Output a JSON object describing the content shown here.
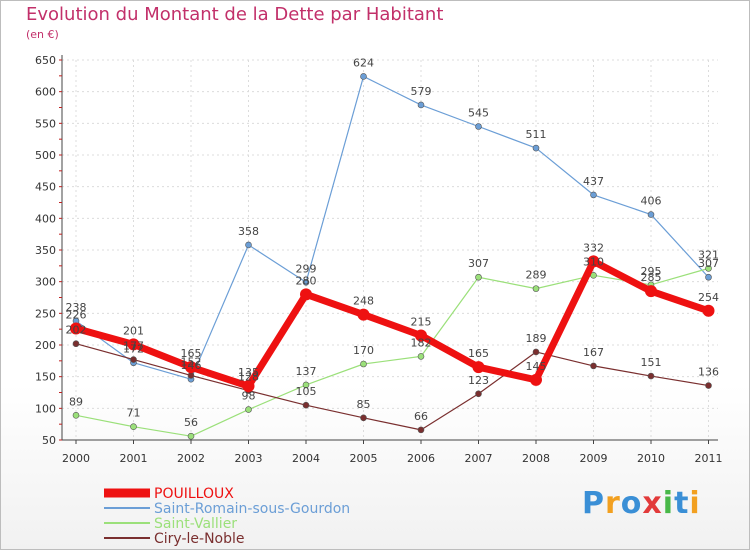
{
  "chart_data": {
    "type": "line",
    "title": "Evolution du Montant de la Dette par Habitant",
    "subtitle": "(en €)",
    "x": [
      "2000",
      "2001",
      "2002",
      "2003",
      "2004",
      "2005",
      "2006",
      "2007",
      "2008",
      "2009",
      "2010",
      "2011"
    ],
    "ylim": [
      50,
      650
    ],
    "yticks": [
      50,
      100,
      150,
      200,
      250,
      300,
      350,
      400,
      450,
      500,
      550,
      600,
      650
    ],
    "grid": true,
    "legend_position": "bottom-left",
    "series": [
      {
        "name": "POUILLOUX",
        "color": "#ee1111",
        "values": [
          226,
          201,
          165,
          135,
          280,
          248,
          215,
          165,
          145,
          332,
          285,
          254
        ]
      },
      {
        "name": "Saint-Romain-sous-Gourdon",
        "color": "#6b9ed6",
        "values": [
          238,
          172,
          146,
          358,
          299,
          624,
          579,
          545,
          511,
          437,
          406,
          307
        ]
      },
      {
        "name": "Saint-Vallier",
        "color": "#9be07a",
        "values": [
          89,
          71,
          56,
          98,
          137,
          170,
          182,
          307,
          289,
          310,
          295,
          321
        ]
      },
      {
        "name": "Ciry-le-Noble",
        "color": "#7a2f2f",
        "values": [
          202,
          177,
          152,
          128,
          105,
          85,
          66,
          123,
          189,
          167,
          151,
          136
        ]
      }
    ]
  },
  "logo": {
    "letters": [
      "P",
      "r",
      "o",
      "x",
      "i",
      "t",
      "i"
    ],
    "colors": [
      "#3a8fd6",
      "#f2a020",
      "#3a8fd6",
      "#e23a3a",
      "#48b848",
      "#3a8fd6",
      "#f2a020"
    ]
  }
}
